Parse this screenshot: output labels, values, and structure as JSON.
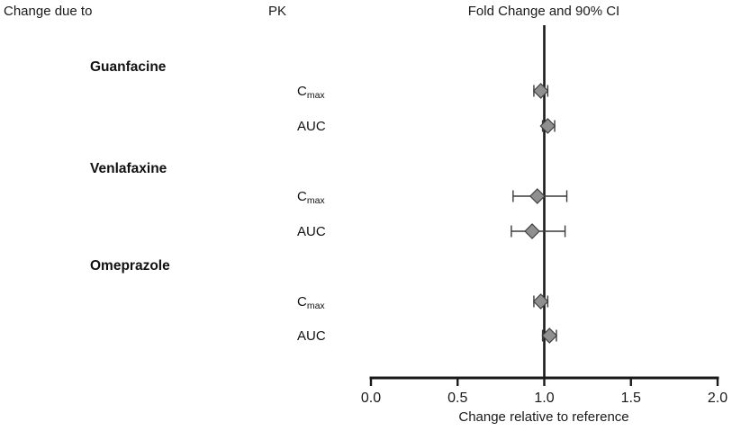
{
  "header": {
    "change_due_to": "Change due to",
    "pk": "PK"
  },
  "chart_data": {
    "type": "forest",
    "title": "Fold Change and 90% CI",
    "xlabel": "Change relative to reference",
    "xlim": [
      0.0,
      2.0
    ],
    "xticks": [
      0.0,
      0.5,
      1.0,
      1.5,
      2.0
    ],
    "tick_labels": [
      "0.0",
      "0.5",
      "1.0",
      "1.5",
      "2.0"
    ],
    "reference_line": 1.0,
    "marker": "diamond",
    "marker_color": "#8f8f8f",
    "marker_border_color": "#3f3f3f",
    "line_color": "#1a1a1a",
    "groups": [
      {
        "label": "Guanfacine",
        "rows": [
          {
            "param_base": "C",
            "param_sub": "max",
            "value": 0.98,
            "ci_low": 0.94,
            "ci_high": 1.02
          },
          {
            "param_base": "AUC",
            "param_sub": "",
            "value": 1.02,
            "ci_low": 0.99,
            "ci_high": 1.06
          }
        ]
      },
      {
        "label": "Venlafaxine",
        "rows": [
          {
            "param_base": "C",
            "param_sub": "max",
            "value": 0.96,
            "ci_low": 0.82,
            "ci_high": 1.13
          },
          {
            "param_base": "AUC",
            "param_sub": "",
            "value": 0.93,
            "ci_low": 0.81,
            "ci_high": 1.12
          }
        ]
      },
      {
        "label": "Omeprazole",
        "rows": [
          {
            "param_base": "C",
            "param_sub": "max",
            "value": 0.98,
            "ci_low": 0.94,
            "ci_high": 1.02
          },
          {
            "param_base": "AUC",
            "param_sub": "",
            "value": 1.03,
            "ci_low": 0.99,
            "ci_high": 1.07
          }
        ]
      }
    ]
  }
}
